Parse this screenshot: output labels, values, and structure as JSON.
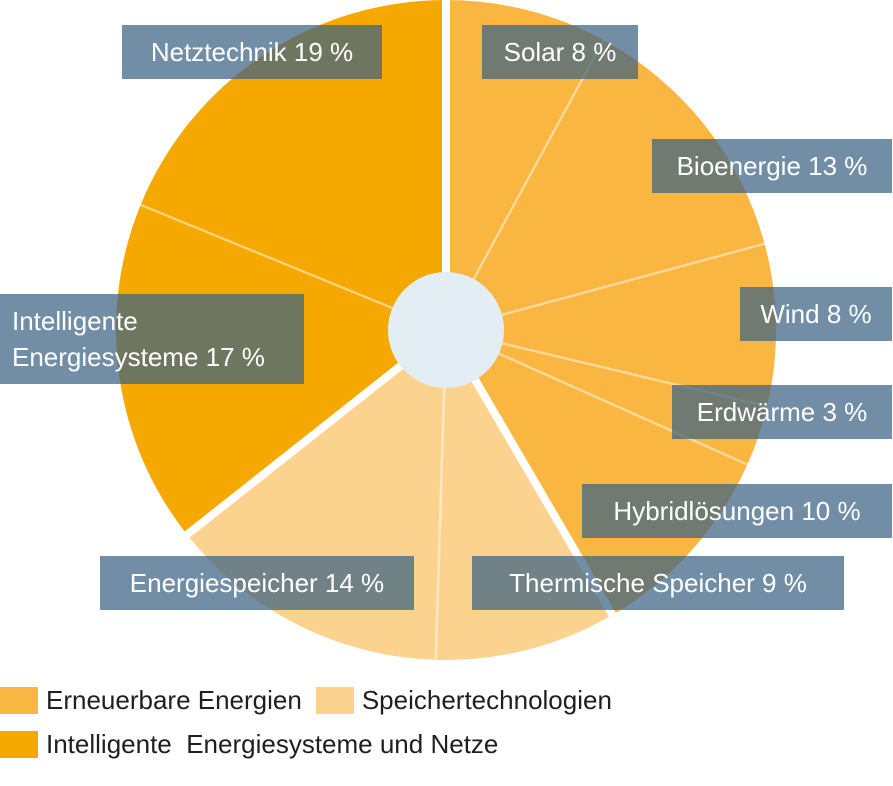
{
  "chart_data": {
    "type": "pie",
    "start_angle_deg": 0,
    "donut_hole": true,
    "groups": [
      {
        "name": "Erneuerbare Energien",
        "color": "#F9B640"
      },
      {
        "name": "Speichertechnologien",
        "color": "#FCD38E"
      },
      {
        "name": "Intelligente  Energiesysteme und Netze",
        "color": "#F5A800"
      }
    ],
    "slices": [
      {
        "label": "Solar 8 %",
        "value": 8,
        "group": 0
      },
      {
        "label": "Bioenergie 13 %",
        "value": 13,
        "group": 0
      },
      {
        "label": "Wind 8 %",
        "value": 8,
        "group": 0
      },
      {
        "label": "Erdwärme 3 %",
        "value": 3,
        "group": 0
      },
      {
        "label": "Hybridlösungen 10 %",
        "value": 10,
        "group": 0
      },
      {
        "label": "Thermische Speicher 9 %",
        "value": 9,
        "group": 1
      },
      {
        "label": "Energiespeicher 14 %",
        "value": 14,
        "group": 1
      },
      {
        "label": [
          "Intelligente",
          "Energiesysteme 17 %"
        ],
        "value": 17,
        "group": 2
      },
      {
        "label": "Netztechnik 19 %",
        "value": 19,
        "group": 2
      }
    ],
    "label_box_color": "#3A6383",
    "hole_color": "#E2EEF4"
  }
}
